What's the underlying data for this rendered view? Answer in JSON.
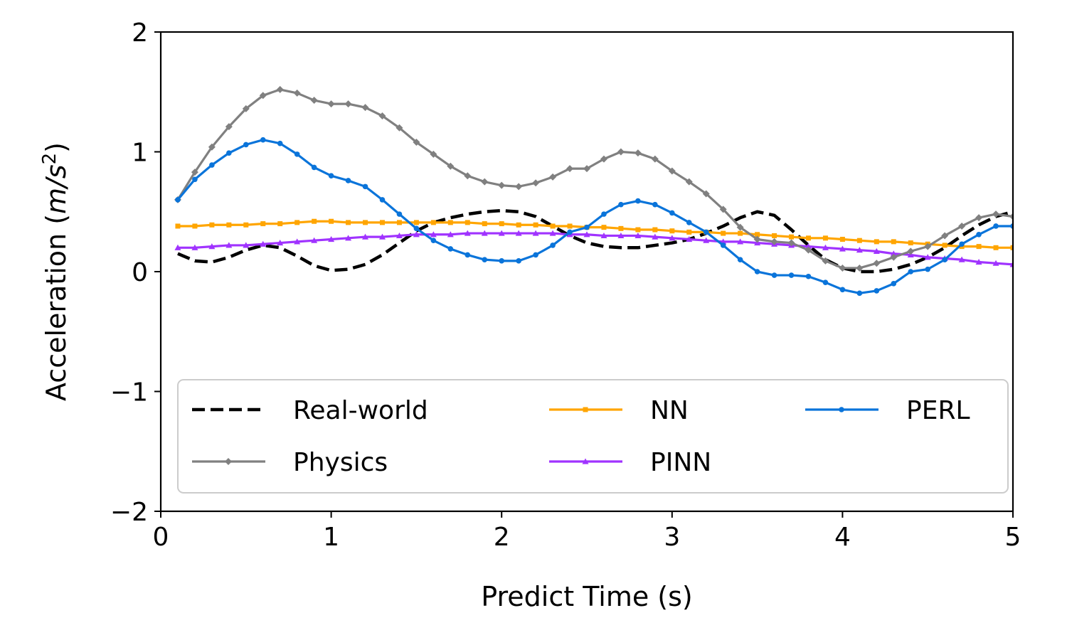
{
  "chart_data": {
    "type": "line",
    "xlabel": "Predict Time (s)",
    "ylabel_main": "Acceleration (",
    "ylabel_unit": "m/s",
    "ylabel_sup": "2",
    "ylabel_close": ")",
    "xlim": [
      0,
      5
    ],
    "ylim": [
      -2,
      2
    ],
    "xticks": [
      0,
      1,
      2,
      3,
      4,
      5
    ],
    "xtick_labels": [
      "0",
      "1",
      "2",
      "3",
      "4",
      "5"
    ],
    "yticks": [
      -2,
      -1,
      0,
      1,
      2
    ],
    "ytick_labels": [
      "−2",
      "−1",
      "0",
      "1",
      "2"
    ],
    "grid": false,
    "legend_position": "lower-center",
    "x": [
      0.1,
      0.2,
      0.3,
      0.4,
      0.5,
      0.6,
      0.7,
      0.8,
      0.9,
      1.0,
      1.1,
      1.2,
      1.3,
      1.4,
      1.5,
      1.6,
      1.7,
      1.8,
      1.9,
      2.0,
      2.1,
      2.2,
      2.3,
      2.4,
      2.5,
      2.6,
      2.7,
      2.8,
      2.9,
      3.0,
      3.1,
      3.2,
      3.3,
      3.4,
      3.5,
      3.6,
      3.7,
      3.8,
      3.9,
      4.0,
      4.1,
      4.2,
      4.3,
      4.4,
      4.5,
      4.6,
      4.7,
      4.8,
      4.9,
      5.0
    ],
    "series": [
      {
        "name": "Real-world",
        "color": "#000000",
        "style": "dashed",
        "marker": "none",
        "values": [
          0.15,
          0.09,
          0.08,
          0.12,
          0.18,
          0.22,
          0.2,
          0.13,
          0.05,
          0.01,
          0.02,
          0.06,
          0.14,
          0.24,
          0.34,
          0.41,
          0.45,
          0.48,
          0.5,
          0.51,
          0.5,
          0.46,
          0.38,
          0.3,
          0.24,
          0.21,
          0.2,
          0.2,
          0.22,
          0.24,
          0.27,
          0.32,
          0.38,
          0.45,
          0.5,
          0.47,
          0.35,
          0.22,
          0.1,
          0.03,
          0.0,
          0.0,
          0.02,
          0.06,
          0.12,
          0.2,
          0.3,
          0.39,
          0.46,
          0.5
        ]
      },
      {
        "name": "Physics",
        "color": "#808080",
        "style": "solid",
        "marker": "diamond",
        "values": [
          0.6,
          0.83,
          1.04,
          1.21,
          1.36,
          1.47,
          1.52,
          1.49,
          1.43,
          1.4,
          1.4,
          1.37,
          1.3,
          1.2,
          1.08,
          0.98,
          0.88,
          0.8,
          0.75,
          0.72,
          0.71,
          0.74,
          0.79,
          0.86,
          0.86,
          0.94,
          1.0,
          0.99,
          0.94,
          0.84,
          0.75,
          0.65,
          0.52,
          0.37,
          0.27,
          0.25,
          0.24,
          0.18,
          0.09,
          0.03,
          0.03,
          0.07,
          0.12,
          0.17,
          0.21,
          0.3,
          0.38,
          0.45,
          0.48,
          0.46
        ]
      },
      {
        "name": "NN",
        "color": "#FFA500",
        "style": "solid",
        "marker": "square",
        "values": [
          0.38,
          0.38,
          0.39,
          0.39,
          0.39,
          0.4,
          0.4,
          0.41,
          0.42,
          0.42,
          0.41,
          0.41,
          0.41,
          0.41,
          0.41,
          0.41,
          0.41,
          0.41,
          0.4,
          0.4,
          0.39,
          0.39,
          0.38,
          0.38,
          0.37,
          0.37,
          0.36,
          0.35,
          0.35,
          0.34,
          0.33,
          0.33,
          0.32,
          0.32,
          0.31,
          0.3,
          0.29,
          0.28,
          0.28,
          0.27,
          0.26,
          0.25,
          0.25,
          0.24,
          0.23,
          0.22,
          0.21,
          0.21,
          0.2,
          0.2
        ]
      },
      {
        "name": "PINN",
        "color": "#A033FF",
        "style": "solid",
        "marker": "triangle",
        "values": [
          0.2,
          0.2,
          0.21,
          0.22,
          0.22,
          0.23,
          0.24,
          0.25,
          0.26,
          0.27,
          0.28,
          0.29,
          0.29,
          0.3,
          0.31,
          0.31,
          0.31,
          0.32,
          0.32,
          0.32,
          0.32,
          0.32,
          0.32,
          0.31,
          0.31,
          0.3,
          0.3,
          0.3,
          0.29,
          0.28,
          0.27,
          0.26,
          0.25,
          0.25,
          0.24,
          0.23,
          0.22,
          0.21,
          0.2,
          0.19,
          0.18,
          0.17,
          0.15,
          0.14,
          0.12,
          0.11,
          0.1,
          0.08,
          0.07,
          0.06
        ]
      },
      {
        "name": "PERL",
        "color": "#0A74DA",
        "style": "solid",
        "marker": "circle",
        "values": [
          0.6,
          0.77,
          0.89,
          0.99,
          1.06,
          1.1,
          1.07,
          0.98,
          0.87,
          0.8,
          0.76,
          0.71,
          0.6,
          0.48,
          0.36,
          0.26,
          0.19,
          0.14,
          0.1,
          0.09,
          0.09,
          0.14,
          0.22,
          0.33,
          0.37,
          0.48,
          0.56,
          0.59,
          0.56,
          0.49,
          0.41,
          0.33,
          0.22,
          0.1,
          0.0,
          -0.03,
          -0.03,
          -0.04,
          -0.09,
          -0.15,
          -0.18,
          -0.16,
          -0.1,
          0.0,
          0.02,
          0.1,
          0.23,
          0.31,
          0.38,
          0.38
        ]
      }
    ]
  }
}
